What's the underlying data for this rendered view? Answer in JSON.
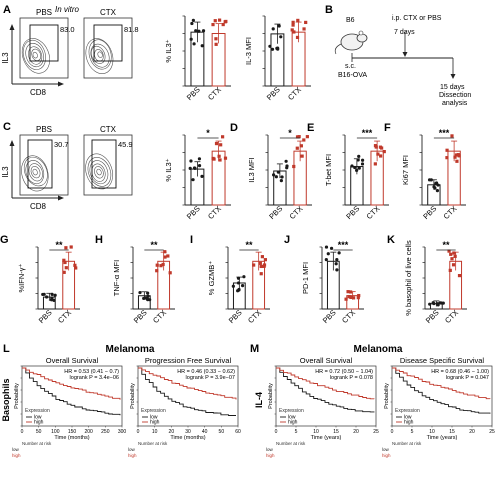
{
  "colors": {
    "pbs": "#1a1a1a",
    "ctx": "#c0392b",
    "flow": "#555555",
    "axis": "#222222"
  },
  "panelA": {
    "letter": "A",
    "in_vitro": "In vitro",
    "flow": [
      {
        "label": "PBS",
        "pct": "83.0"
      },
      {
        "label": "CTX",
        "pct": "81.8"
      }
    ],
    "y_axis": "IL3",
    "x_axis": "CD8"
  },
  "panelB": {
    "letter": "B",
    "mouse": "B6",
    "route": "s.c.",
    "tumor": "B16-OVA",
    "treatment": "i.p. CTX or PBS",
    "day7": "7 days",
    "day15": "15 days",
    "end_line1": "Dissection",
    "end_line2": "analysis"
  },
  "panelC": {
    "letter": "C",
    "flow": [
      {
        "label": "PBS",
        "pct": "30.7"
      },
      {
        "label": "CTX",
        "pct": "45.9"
      }
    ],
    "y_axis": "IL3",
    "x_axis": "CD8"
  },
  "chart_data": [
    {
      "id": "A1",
      "type": "bar",
      "letter": "",
      "ylabel": "% IL3⁺",
      "categories": [
        "PBS",
        "CTX"
      ],
      "values": [
        80,
        78
      ],
      "sig": ""
    },
    {
      "id": "A2",
      "type": "bar",
      "letter": "",
      "ylabel": "IL-3 MFI",
      "categories": [
        "PBS",
        "CTX"
      ],
      "values": [
        3000,
        3100
      ],
      "sig": ""
    },
    {
      "id": "C",
      "type": "bar",
      "letter": "",
      "ylabel": "% IL3⁺",
      "categories": [
        "PBS",
        "CTX"
      ],
      "values": [
        28,
        42
      ],
      "sig": "*"
    },
    {
      "id": "D",
      "type": "bar",
      "letter": "D",
      "ylabel": "IL3 MFI",
      "categories": [
        "PBS",
        "CTX"
      ],
      "values": [
        1200,
        1900
      ],
      "sig": "*"
    },
    {
      "id": "E",
      "type": "bar",
      "letter": "E",
      "ylabel": "T-bet MFI",
      "categories": [
        "PBS",
        "CTX"
      ],
      "values": [
        1000,
        1400
      ],
      "sig": "***"
    },
    {
      "id": "F",
      "type": "bar",
      "letter": "F",
      "ylabel": "Ki67 MFI",
      "categories": [
        "PBS",
        "CTX"
      ],
      "values": [
        1500,
        4000
      ],
      "sig": "***"
    },
    {
      "id": "G",
      "type": "bar",
      "letter": "G",
      "ylabel": "%IFN-γ⁺",
      "categories": [
        "PBS",
        "CTX"
      ],
      "values": [
        3,
        12
      ],
      "sig": "**"
    },
    {
      "id": "H",
      "type": "bar",
      "letter": "H",
      "ylabel": "TNF-α MFI",
      "categories": [
        "PBS",
        "CTX"
      ],
      "values": [
        500,
        1800
      ],
      "sig": "**"
    },
    {
      "id": "I",
      "type": "bar",
      "letter": "I",
      "ylabel": "% GZMB⁺",
      "categories": [
        "PBS",
        "CTX"
      ],
      "values": [
        30,
        55
      ],
      "sig": "**"
    },
    {
      "id": "J",
      "type": "bar",
      "letter": "J",
      "ylabel": "PD-1 MFI",
      "categories": [
        "PBS",
        "CTX"
      ],
      "values": [
        2500,
        700
      ],
      "sig": "***"
    },
    {
      "id": "K",
      "type": "bar",
      "letter": "K",
      "ylabel": "% basophil of live cells",
      "categories": [
        "PBS",
        "CTX"
      ],
      "values": [
        0.02,
        0.18
      ],
      "sig": "**"
    }
  ],
  "panelL": {
    "letter": "L",
    "header": "Melanoma",
    "side_label": "Basophils",
    "plots": [
      {
        "title": "Overall Survival",
        "hr": "HR = 0.53 (0.41 − 0.7)",
        "logrank": "logrank P = 3.4e−06",
        "xlabel": "Time (months)",
        "ticks": [
          "0",
          "50",
          "100",
          "150",
          "200",
          "250",
          "300"
        ]
      },
      {
        "title": "Progression Free Survival",
        "hr": "HR = 0.46 (0.33 − 0.62)",
        "logrank": "logrank P = 3.9e−07",
        "xlabel": "Time (months)",
        "ticks": [
          "0",
          "10",
          "20",
          "30",
          "40",
          "50",
          "60"
        ]
      }
    ]
  },
  "panelM": {
    "letter": "M",
    "header": "Melanoma",
    "side_label": "IL-4",
    "plots": [
      {
        "title": "Overall Survival",
        "hr": "HR = 0.72 (0.50 − 1.04)",
        "logrank": "logrank P = 0.078",
        "xlabel": "Time (years)",
        "ticks": [
          "0",
          "5",
          "10",
          "15",
          "20",
          "25"
        ]
      },
      {
        "title": "Disease Specific Survival",
        "hr": "HR = 0.68 (0.46 − 1.00)",
        "logrank": "logrank P = 0.047",
        "xlabel": "Time (years)",
        "ticks": [
          "0",
          "5",
          "10",
          "15",
          "20",
          "25"
        ]
      }
    ]
  },
  "km": {
    "ylabel": "Probability",
    "legend_title": "Expression",
    "low": "low",
    "high": "high",
    "at_risk": "Number at risk"
  }
}
